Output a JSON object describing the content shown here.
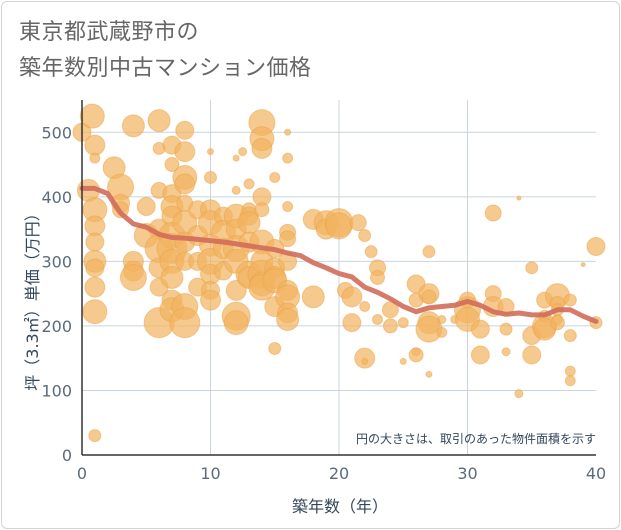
{
  "title_line1": "東京都武蔵野市の",
  "title_line2": "築年数別中古マンション価格",
  "chart_data": {
    "type": "scatter",
    "xlabel": "築年数（年）",
    "ylabel": "坪（3.3㎡）単価（万円）",
    "xlim": [
      0,
      40
    ],
    "ylim": [
      0,
      550
    ],
    "x_ticks": [
      0,
      10,
      20,
      30,
      40
    ],
    "y_ticks": [
      0,
      100,
      200,
      300,
      400,
      500
    ],
    "grid": true,
    "note": "円の大きさは、取引のあった物件面積を示す",
    "colors": {
      "bubble": "#f2b35f",
      "bubble_stroke": "#e9a244",
      "trend": "#d26b5a",
      "grid": "#c8d4e0"
    },
    "series": [
      {
        "type": "bubble",
        "points": [
          [
            0,
            500,
            9
          ],
          [
            0.8,
            525,
            12
          ],
          [
            1,
            480,
            10
          ],
          [
            1,
            460,
            5
          ],
          [
            0.5,
            410,
            11
          ],
          [
            1,
            380,
            12
          ],
          [
            1,
            355,
            10
          ],
          [
            1,
            330,
            9
          ],
          [
            1,
            300,
            11
          ],
          [
            1,
            290,
            9
          ],
          [
            1,
            260,
            10
          ],
          [
            1,
            222,
            12
          ],
          [
            1,
            30,
            6
          ],
          [
            2.5,
            445,
            11
          ],
          [
            3,
            415,
            13
          ],
          [
            3,
            390,
            9
          ],
          [
            3,
            380,
            8
          ],
          [
            4,
            300,
            10
          ],
          [
            4,
            285,
            10
          ],
          [
            4,
            275,
            13
          ],
          [
            4,
            510,
            11
          ],
          [
            5,
            385,
            9
          ],
          [
            5,
            340,
            12
          ],
          [
            6,
            518,
            11
          ],
          [
            6,
            475,
            6
          ],
          [
            6,
            410,
            8
          ],
          [
            6,
            350,
            10
          ],
          [
            6,
            320,
            14
          ],
          [
            6,
            290,
            10
          ],
          [
            6,
            260,
            9
          ],
          [
            6,
            205,
            15
          ],
          [
            7,
            480,
            9
          ],
          [
            7,
            450,
            7
          ],
          [
            7,
            405,
            9
          ],
          [
            7,
            385,
            11
          ],
          [
            7,
            370,
            10
          ],
          [
            7,
            340,
            13
          ],
          [
            7,
            320,
            15
          ],
          [
            7,
            300,
            12
          ],
          [
            7,
            275,
            11
          ],
          [
            7,
            240,
            10
          ],
          [
            7,
            225,
            12
          ],
          [
            8,
            503,
            9
          ],
          [
            8,
            470,
            10
          ],
          [
            8,
            430,
            12
          ],
          [
            8,
            420,
            10
          ],
          [
            8,
            390,
            8
          ],
          [
            8,
            360,
            12
          ],
          [
            8,
            330,
            10
          ],
          [
            8,
            300,
            9
          ],
          [
            8,
            230,
            13
          ],
          [
            8,
            205,
            15
          ],
          [
            9,
            380,
            9
          ],
          [
            9,
            340,
            10
          ],
          [
            9,
            300,
            9
          ],
          [
            9,
            260,
            9
          ],
          [
            10,
            470,
            3
          ],
          [
            10,
            430,
            6
          ],
          [
            10,
            380,
            10
          ],
          [
            10,
            360,
            12
          ],
          [
            10,
            325,
            11
          ],
          [
            10,
            300,
            13
          ],
          [
            10,
            280,
            10
          ],
          [
            10,
            255,
            9
          ],
          [
            10,
            240,
            10
          ],
          [
            11,
            370,
            9
          ],
          [
            11,
            345,
            12
          ],
          [
            11,
            320,
            10
          ],
          [
            11,
            285,
            9
          ],
          [
            12,
            370,
            12
          ],
          [
            12,
            350,
            10
          ],
          [
            12,
            320,
            13
          ],
          [
            12,
            300,
            12
          ],
          [
            12,
            255,
            10
          ],
          [
            12,
            215,
            14
          ],
          [
            12,
            205,
            12
          ],
          [
            12,
            460,
            3
          ],
          [
            12,
            410,
            4
          ],
          [
            12.5,
            470,
            4
          ],
          [
            13,
            420,
            5
          ],
          [
            13,
            380,
            7
          ],
          [
            13,
            370,
            9
          ],
          [
            13,
            360,
            11
          ],
          [
            13,
            330,
            10
          ],
          [
            13,
            280,
            13
          ],
          [
            13,
            275,
            11
          ],
          [
            14,
            515,
            13
          ],
          [
            14,
            490,
            12
          ],
          [
            14,
            475,
            10
          ],
          [
            14,
            400,
            9
          ],
          [
            14,
            380,
            7
          ],
          [
            14,
            330,
            12
          ],
          [
            14,
            300,
            11
          ],
          [
            14,
            280,
            14
          ],
          [
            14,
            265,
            12
          ],
          [
            14,
            260,
            13
          ],
          [
            15,
            430,
            5
          ],
          [
            15,
            320,
            9
          ],
          [
            15,
            290,
            10
          ],
          [
            15,
            275,
            11
          ],
          [
            15,
            270,
            12
          ],
          [
            15,
            230,
            10
          ],
          [
            15,
            165,
            6
          ],
          [
            16,
            500,
            3
          ],
          [
            16,
            460,
            5
          ],
          [
            16,
            385,
            5
          ],
          [
            16,
            345,
            8
          ],
          [
            16,
            335,
            8
          ],
          [
            16,
            300,
            9
          ],
          [
            16,
            255,
            10
          ],
          [
            16,
            245,
            12
          ],
          [
            16,
            220,
            10
          ],
          [
            16,
            210,
            11
          ],
          [
            18,
            365,
            10
          ],
          [
            18,
            245,
            11
          ],
          [
            19,
            360,
            12
          ],
          [
            19,
            350,
            10
          ],
          [
            20,
            360,
            14
          ],
          [
            20,
            355,
            13
          ],
          [
            20.5,
            255,
            8
          ],
          [
            21,
            245,
            10
          ],
          [
            21,
            205,
            9
          ],
          [
            21.5,
            360,
            8
          ],
          [
            22,
            340,
            6
          ],
          [
            22,
            150,
            10
          ],
          [
            22,
            145,
            3
          ],
          [
            22.5,
            315,
            6
          ],
          [
            23,
            290,
            8
          ],
          [
            23,
            275,
            7
          ],
          [
            23,
            210,
            5
          ],
          [
            24,
            225,
            8
          ],
          [
            24,
            200,
            7
          ],
          [
            25,
            205,
            5
          ],
          [
            25,
            145,
            3
          ],
          [
            26,
            265,
            9
          ],
          [
            26,
            240,
            7
          ],
          [
            26,
            160,
            4
          ],
          [
            26,
            155,
            7
          ],
          [
            27,
            315,
            6
          ],
          [
            27,
            250,
            10
          ],
          [
            27,
            245,
            7
          ],
          [
            27,
            205,
            11
          ],
          [
            27,
            195,
            13
          ],
          [
            27,
            125,
            3
          ],
          [
            28,
            190,
            5
          ],
          [
            28,
            210,
            4
          ],
          [
            29,
            210,
            4
          ],
          [
            30,
            240,
            8
          ],
          [
            30,
            225,
            13
          ],
          [
            30,
            210,
            12
          ],
          [
            31,
            195,
            9
          ],
          [
            31,
            155,
            9
          ],
          [
            32,
            375,
            8
          ],
          [
            32,
            250,
            8
          ],
          [
            32,
            230,
            10
          ],
          [
            33,
            230,
            8
          ],
          [
            33,
            195,
            6
          ],
          [
            33,
            160,
            4
          ],
          [
            34,
            95,
            4
          ],
          [
            34,
            398,
            2
          ],
          [
            35,
            185,
            9
          ],
          [
            35,
            155,
            9
          ],
          [
            35,
            290,
            6
          ],
          [
            36,
            240,
            8
          ],
          [
            36,
            215,
            6
          ],
          [
            36,
            200,
            12
          ],
          [
            36,
            195,
            11
          ],
          [
            37,
            247,
            12
          ],
          [
            37,
            235,
            7
          ],
          [
            37,
            225,
            6
          ],
          [
            37,
            210,
            5
          ],
          [
            37,
            205,
            7
          ],
          [
            38,
            240,
            6
          ],
          [
            38,
            185,
            6
          ],
          [
            38,
            130,
            5
          ],
          [
            38,
            115,
            5
          ],
          [
            39,
            295,
            2
          ],
          [
            40,
            323,
            9
          ],
          [
            40,
            205,
            6
          ],
          [
            22,
            230,
            5
          ]
        ]
      },
      {
        "type": "line",
        "x": [
          0,
          1,
          2,
          3,
          4,
          5,
          6,
          7,
          8,
          9,
          10,
          11,
          12,
          13,
          14,
          15,
          16,
          17,
          18,
          19,
          20,
          21,
          22,
          23,
          24,
          25,
          26,
          27,
          28,
          29,
          30,
          31,
          32,
          33,
          34,
          35,
          36,
          37,
          38,
          39,
          40
        ],
        "y": [
          413,
          413,
          405,
          375,
          358,
          353,
          342,
          337,
          336,
          334,
          332,
          330,
          327,
          324,
          321,
          318,
          313,
          309,
          298,
          290,
          281,
          276,
          260,
          252,
          242,
          230,
          222,
          228,
          230,
          232,
          238,
          232,
          222,
          218,
          220,
          217,
          217,
          225,
          225,
          215,
          207
        ]
      }
    ]
  }
}
